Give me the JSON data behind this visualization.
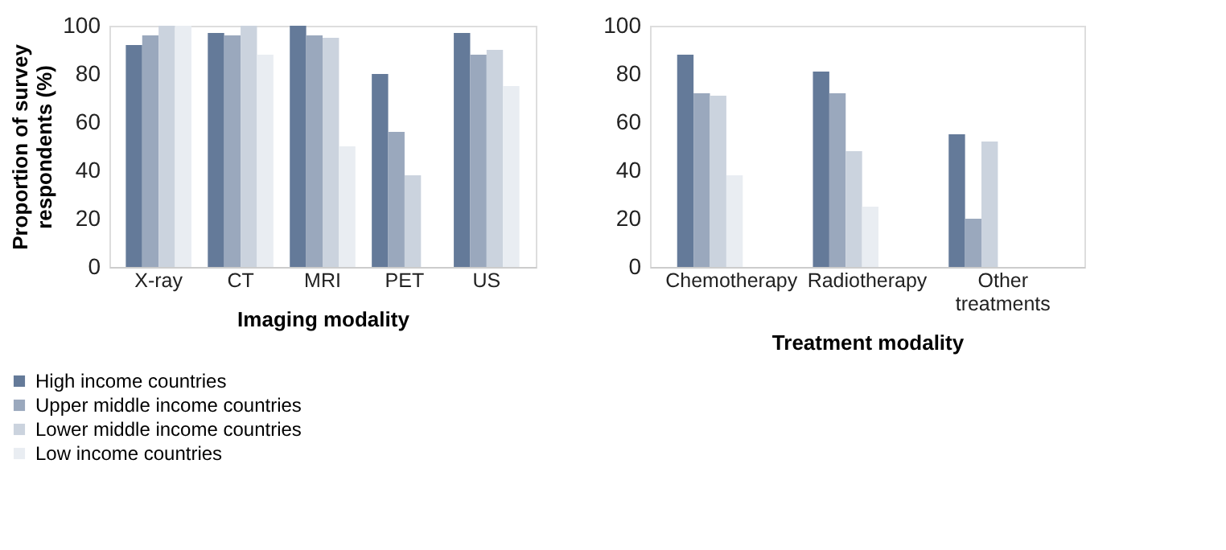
{
  "chart_data": [
    {
      "type": "bar",
      "xlabel": "Imaging modality",
      "ylabel": "Proportion of survey respondents (%)",
      "categories": [
        "X-ray",
        "CT",
        "MRI",
        "PET",
        "US"
      ],
      "ylim": [
        0,
        100
      ],
      "yticks": [
        0,
        20,
        40,
        60,
        80,
        100
      ],
      "grid": false,
      "legend": "bottom left",
      "series": [
        {
          "name": "High income countries",
          "color": "#647a99",
          "values": [
            92,
            97,
            100,
            80,
            97
          ]
        },
        {
          "name": "Upper middle income countries",
          "color": "#9aa8bd",
          "values": [
            96,
            96,
            96,
            56,
            88
          ]
        },
        {
          "name": "Lower middle income countries",
          "color": "#cbd3de",
          "values": [
            100,
            100,
            95,
            38,
            90
          ]
        },
        {
          "name": "Low income countries",
          "color": "#e9edf2",
          "values": [
            100,
            88,
            50,
            0,
            75
          ]
        }
      ]
    },
    {
      "type": "bar",
      "xlabel": "Treatment modality",
      "categories": [
        "Chemotherapy",
        "Radiotherapy",
        "Other treatments"
      ],
      "ylim": [
        0,
        100
      ],
      "yticks": [
        0,
        20,
        40,
        60,
        80,
        100
      ],
      "grid": false,
      "legend": false,
      "series": [
        {
          "color": "#647a99",
          "values": [
            88,
            81,
            55
          ]
        },
        {
          "color": "#9aa8bd",
          "values": [
            72,
            72,
            20
          ]
        },
        {
          "color": "#cbd3de",
          "values": [
            71,
            48,
            52
          ]
        },
        {
          "color": "#e9edf2",
          "values": [
            38,
            25,
            0
          ]
        }
      ]
    }
  ]
}
